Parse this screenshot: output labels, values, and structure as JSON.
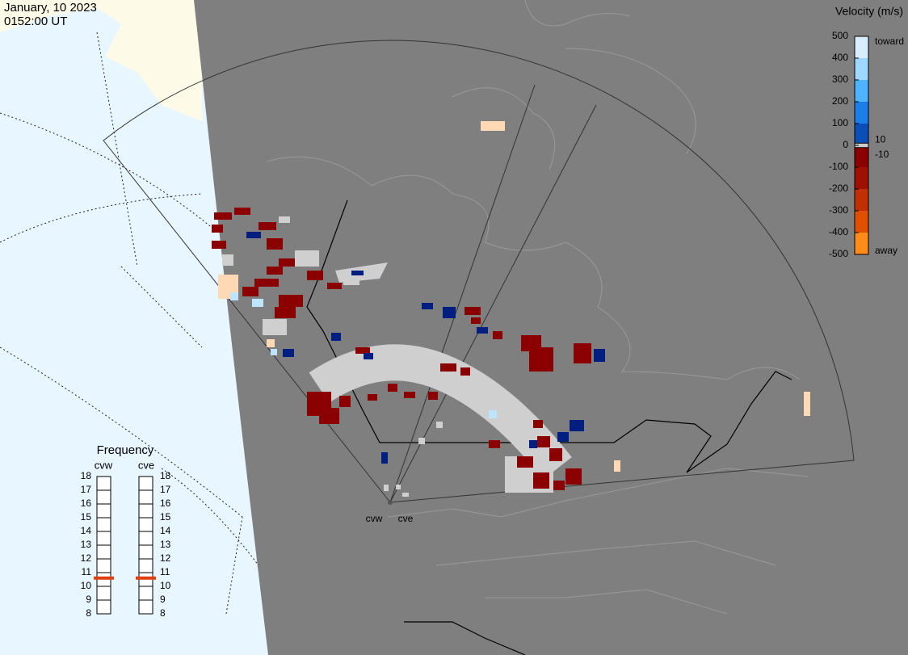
{
  "header": {
    "date": "January, 10 2023",
    "time": "0152:00 UT"
  },
  "velocity_scale": {
    "title": "Velocity (m/s)",
    "ticks": [
      500,
      400,
      300,
      200,
      100,
      0,
      -100,
      -200,
      -300,
      -400,
      -500
    ],
    "toward": "toward",
    "away": "away",
    "inner_ticks": [
      10,
      -10
    ]
  },
  "frequency": {
    "title": "Frequency",
    "ticks": [
      8,
      9,
      10,
      11,
      12,
      13,
      14,
      15,
      16,
      17,
      18
    ],
    "radars": [
      {
        "name": "cvw",
        "value": 10.6
      },
      {
        "name": "cve",
        "value": 10.6
      }
    ]
  },
  "sites": [
    "cvw",
    "cve"
  ]
}
